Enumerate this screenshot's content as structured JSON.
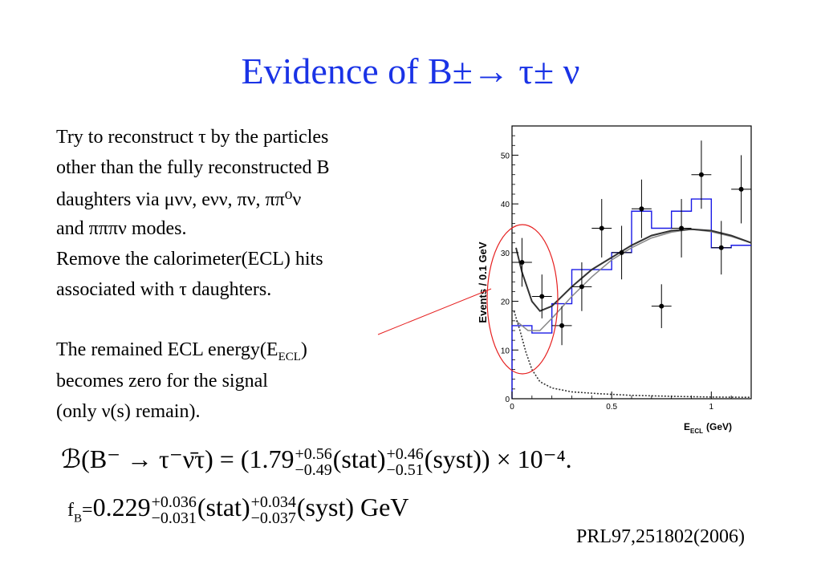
{
  "slide": {
    "title": "Evidence of B±→ τ± ν",
    "body_lines": [
      "Try to reconstruct τ by the particles",
      "other than the fully reconstructed B",
      "daughters via μνν, eνν, πν, ππ⁰ν",
      "and πππν modes.",
      "Remove the calorimeter(ECL) hits",
      "associated with τ daughters.",
      "",
      "The remained ECL energy(E",
      "becomes zero for the signal",
      "(only ν(s) remain)."
    ],
    "ecl_subscript": "ECL",
    "ecl_close": ")",
    "formula_br": {
      "lhs": "ℬ(B⁻ → τ⁻ν̄τ) = (1.79",
      "stat_up": "+0.56",
      "stat_down": "−0.49",
      "stat_label": "(stat)",
      "syst_up": "+0.46",
      "syst_down": "−0.51",
      "syst_label": "(syst)) × 10⁻⁴."
    },
    "formula_fb": {
      "prefix": "f",
      "prefix_sub": "B",
      "eq": "=",
      "value": "0.229",
      "stat_up": "+0.036",
      "stat_down": "−0.031",
      "stat_label": "(stat)",
      "syst_up": "+0.034",
      "syst_down": "−0.037",
      "syst_label": "(syst)  GeV"
    },
    "reference": "PRL97,251802(2006)"
  },
  "chart_data": {
    "type": "scatter",
    "xlabel": "E",
    "xlabel_sub": "ECL",
    "xlabel_unit": "(GeV)",
    "ylabel": "Events / 0.1 GeV",
    "xlim": [
      0,
      1.2
    ],
    "ylim": [
      0,
      56
    ],
    "x_ticks": [
      0,
      0.5,
      1
    ],
    "x_tick_labels": [
      "0",
      "0.5",
      "1"
    ],
    "y_ticks": [
      0,
      10,
      20,
      30,
      40,
      50
    ],
    "y_tick_labels": [
      "0",
      "10",
      "20",
      "30",
      "40",
      "50"
    ],
    "data_points": [
      {
        "x": 0.05,
        "y": 28,
        "err": 5
      },
      {
        "x": 0.15,
        "y": 21,
        "err": 4.5
      },
      {
        "x": 0.25,
        "y": 15,
        "err": 4
      },
      {
        "x": 0.35,
        "y": 23,
        "err": 5
      },
      {
        "x": 0.45,
        "y": 35,
        "err": 6
      },
      {
        "x": 0.55,
        "y": 30,
        "err": 5.5
      },
      {
        "x": 0.65,
        "y": 39,
        "err": 6
      },
      {
        "x": 0.75,
        "y": 19,
        "err": 4.5
      },
      {
        "x": 0.85,
        "y": 35,
        "err": 6
      },
      {
        "x": 0.95,
        "y": 46,
        "err": 7
      },
      {
        "x": 1.05,
        "y": 31,
        "err": 5.5
      },
      {
        "x": 1.15,
        "y": 43,
        "err": 7
      }
    ],
    "histogram": {
      "edges": [
        0,
        0.1,
        0.2,
        0.3,
        0.4,
        0.5,
        0.6,
        0.7,
        0.8,
        0.9,
        1.0,
        1.1,
        1.2
      ],
      "values": [
        15,
        13.5,
        19.5,
        26.5,
        26.5,
        30,
        38.5,
        35,
        38.5,
        41,
        31,
        31.5
      ]
    },
    "total_fit": [
      [
        0.02,
        31
      ],
      [
        0.05,
        26
      ],
      [
        0.1,
        20
      ],
      [
        0.14,
        18
      ],
      [
        0.2,
        19
      ],
      [
        0.3,
        23
      ],
      [
        0.4,
        26.5
      ],
      [
        0.5,
        29
      ],
      [
        0.6,
        31.5
      ],
      [
        0.7,
        33.5
      ],
      [
        0.8,
        34.5
      ],
      [
        0.9,
        34.8
      ],
      [
        1.0,
        34.5
      ],
      [
        1.1,
        33.5
      ],
      [
        1.2,
        32
      ]
    ],
    "background_fit": [
      [
        0.02,
        16
      ],
      [
        0.08,
        14
      ],
      [
        0.14,
        14
      ],
      [
        0.2,
        16.5
      ],
      [
        0.3,
        21
      ],
      [
        0.4,
        25
      ],
      [
        0.5,
        28.5
      ],
      [
        0.6,
        31
      ],
      [
        0.7,
        33
      ],
      [
        0.8,
        34.2
      ],
      [
        0.9,
        34.8
      ],
      [
        1.0,
        34.3
      ],
      [
        1.1,
        33.3
      ],
      [
        1.2,
        32
      ]
    ],
    "signal_fit": [
      [
        0.01,
        18
      ],
      [
        0.04,
        14
      ],
      [
        0.07,
        9.5
      ],
      [
        0.1,
        6
      ],
      [
        0.14,
        3.5
      ],
      [
        0.2,
        2.2
      ],
      [
        0.3,
        1.4
      ],
      [
        0.45,
        1
      ],
      [
        0.6,
        0.7
      ],
      [
        0.8,
        0.5
      ],
      [
        1.0,
        0.35
      ],
      [
        1.2,
        0.3
      ]
    ],
    "colors": {
      "histogram": "#1a1ae6",
      "fit": "#333333",
      "points": "#000000",
      "highlight": "#e62020"
    }
  }
}
